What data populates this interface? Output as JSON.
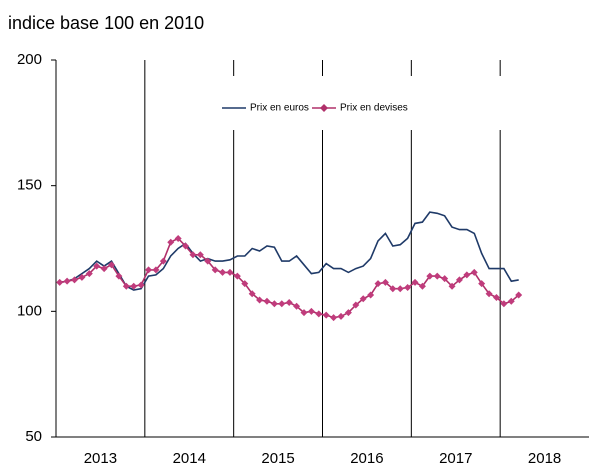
{
  "chart_data": {
    "type": "line",
    "title": "indice base 100 en 2010",
    "categories": [
      "2013",
      null,
      null,
      null,
      null,
      null,
      null,
      null,
      null,
      null,
      null,
      null,
      "2014",
      null,
      null,
      null,
      null,
      null,
      null,
      null,
      null,
      null,
      null,
      null,
      "2015",
      null,
      null,
      null,
      null,
      null,
      null,
      null,
      null,
      null,
      null,
      null,
      "2016",
      null,
      null,
      null,
      null,
      null,
      null,
      null,
      null,
      null,
      null,
      null,
      "2017",
      null,
      null,
      null,
      null,
      null,
      null,
      null,
      null,
      null,
      null,
      null,
      "2018",
      null,
      null,
      null,
      null,
      null,
      null,
      null,
      null,
      null,
      null,
      null
    ],
    "series": [
      {
        "name": "Prix en euros",
        "color": "#1f3a68",
        "marker": false,
        "values": [
          111.5,
          112,
          113,
          115,
          117,
          120,
          118,
          120,
          115,
          110,
          108.5,
          109,
          114,
          114.5,
          117,
          122,
          125,
          127,
          123,
          120,
          121,
          120,
          120,
          120.5,
          122,
          122,
          125,
          124,
          126,
          125.5,
          120,
          120,
          122,
          118.5,
          115,
          115.5,
          119,
          117,
          117,
          115.5,
          117,
          118,
          121,
          128,
          131,
          126,
          126.5,
          129,
          135,
          135.5,
          139.5,
          139,
          138,
          133.5,
          132.5,
          132.5,
          131,
          123,
          117,
          117,
          117,
          112,
          112.5,
          null,
          null,
          null,
          null,
          null,
          null,
          null,
          null,
          null
        ]
      },
      {
        "name": "Prix en devises",
        "color": "#b0306a",
        "marker": true,
        "values": [
          111.5,
          112,
          112.5,
          113.5,
          115,
          118,
          117,
          118.5,
          114,
          110,
          110,
          110.5,
          116.5,
          116.5,
          120,
          127.5,
          129,
          126,
          122.5,
          122.5,
          120,
          116.5,
          115.5,
          115.5,
          114,
          111,
          107,
          104.5,
          104,
          103,
          103,
          103.5,
          102,
          99.5,
          100,
          99,
          98.5,
          97.5,
          98,
          99.5,
          102.5,
          105,
          106.5,
          111,
          111.5,
          109,
          109,
          109.5,
          111.5,
          110,
          114,
          114,
          113,
          110,
          112.5,
          114.5,
          115.5,
          111,
          107,
          105.5,
          103,
          104,
          106.5,
          null,
          null,
          null,
          null,
          null,
          null,
          null,
          null,
          null
        ]
      }
    ],
    "ylim": [
      50,
      200
    ],
    "yticks": [
      50,
      100,
      150,
      200
    ],
    "grid": false,
    "legend": "top"
  }
}
